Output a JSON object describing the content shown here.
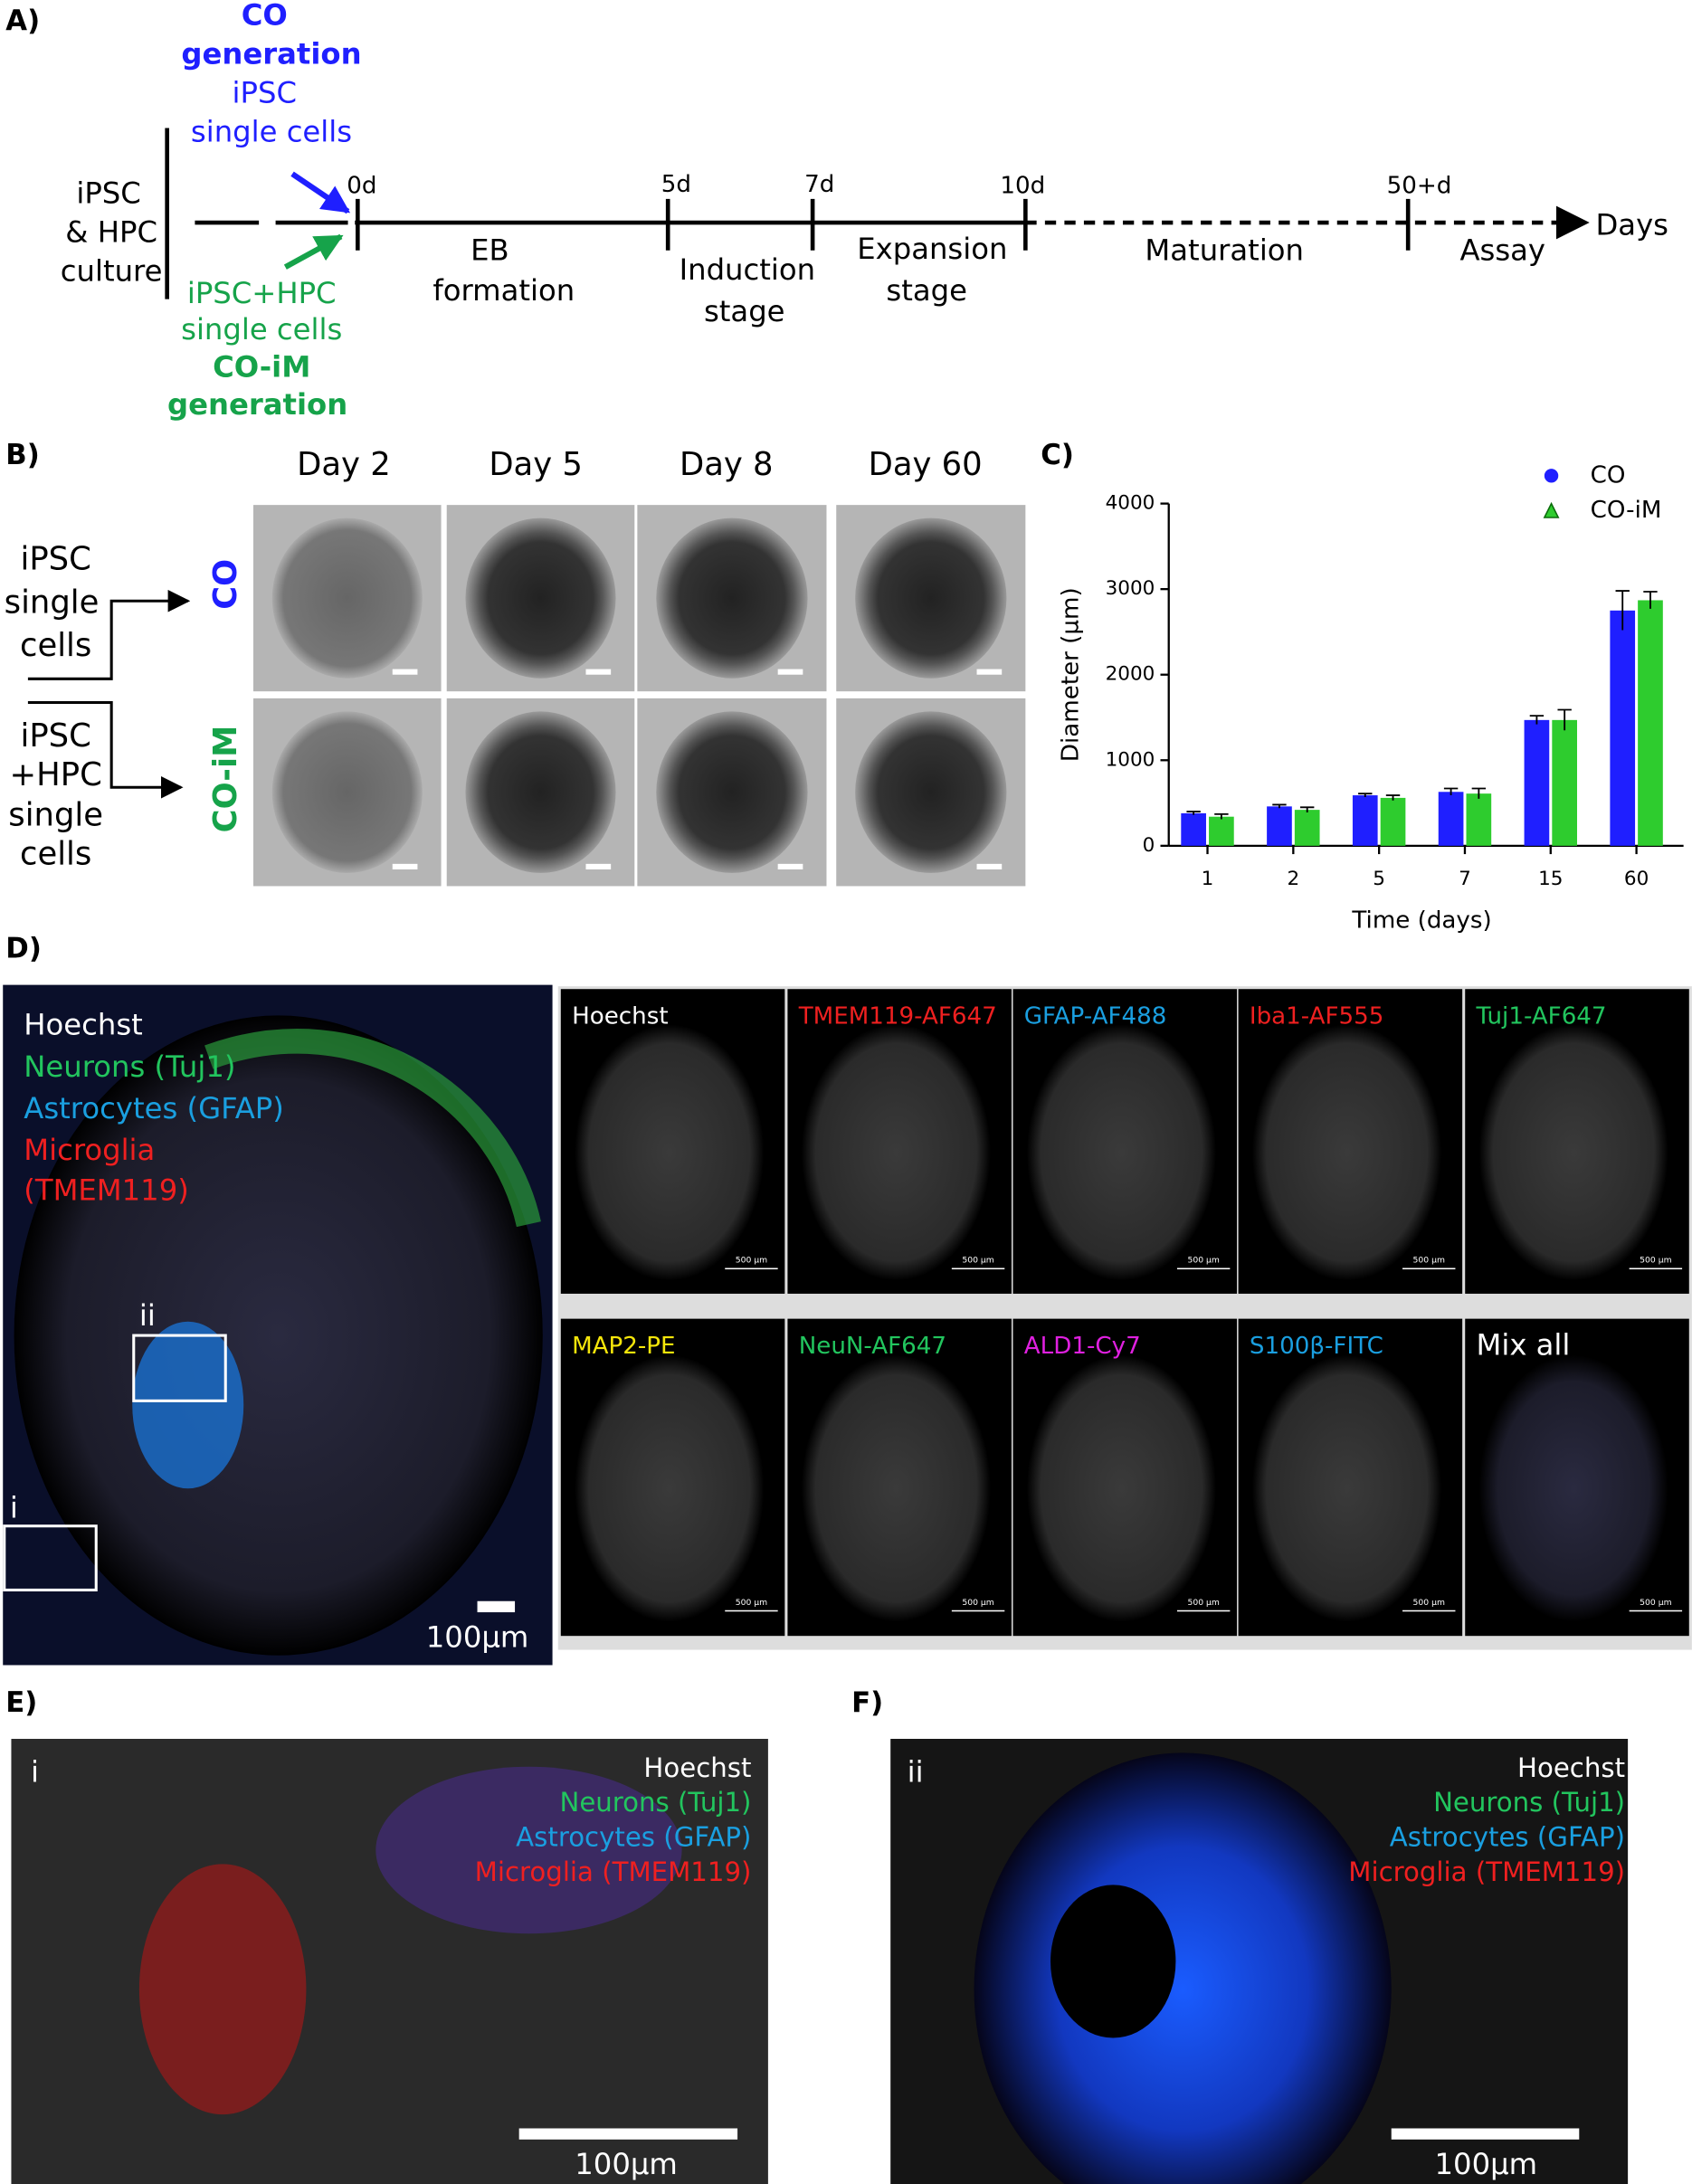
{
  "panel_labels": {
    "a": "A)",
    "b": "B)",
    "c": "C)",
    "d": "D)",
    "e": "E)",
    "f": "F)"
  },
  "timeline": {
    "co_title": [
      "CO",
      "generation"
    ],
    "co_cells": [
      "iPSC",
      "single cells"
    ],
    "culture": [
      "iPSC",
      "& HPC",
      "culture"
    ],
    "coim_cells": [
      "iPSC+HPC",
      "single cells"
    ],
    "coim_title": [
      "CO-iM",
      "generation"
    ],
    "ticks": [
      "0d",
      "5d",
      "7d",
      "10d",
      "50+d"
    ],
    "stages": [
      [
        "EB",
        "formation"
      ],
      [
        "Induction",
        "stage"
      ],
      [
        "Expansion",
        "stage"
      ],
      [
        "Maturation"
      ],
      [
        "Assay"
      ]
    ],
    "axis": "Days"
  },
  "panel_b": {
    "days": [
      "Day 2",
      "Day 5",
      "Day 8",
      "Day 60"
    ],
    "rows": [
      "CO",
      "CO-iM"
    ],
    "left_top": [
      "iPSC",
      "single",
      "cells"
    ],
    "left_bottom": [
      "iPSC",
      "+HPC",
      "single",
      "cells"
    ]
  },
  "chart_data": {
    "type": "bar",
    "x_label": "Time (days)",
    "y_label": "Diameter (µm)",
    "categories": [
      "1",
      "2",
      "5",
      "7",
      "15",
      "60"
    ],
    "series": [
      {
        "name": "CO",
        "color": "#1f1fff",
        "values": [
          380,
          460,
          590,
          630,
          1470,
          2750
        ],
        "errors": [
          20,
          20,
          20,
          40,
          50,
          230
        ]
      },
      {
        "name": "CO-iM",
        "color": "#2ecc2e",
        "values": [
          340,
          420,
          560,
          610,
          1470,
          2870
        ],
        "errors": [
          30,
          30,
          30,
          60,
          120,
          100
        ]
      }
    ],
    "ylim": [
      0,
      4000
    ],
    "yticks": [
      0,
      1000,
      2000,
      3000,
      4000
    ],
    "legend": "top-right"
  },
  "panel_d": {
    "legend": [
      "Hoechst",
      "Neurons (Tuj1)",
      "Astrocytes (GFAP)",
      "Microglia",
      "(TMEM119)"
    ],
    "boxes": [
      "ii",
      "i"
    ],
    "scale": "100µm",
    "panel_scale": "500 µm",
    "grid": [
      [
        "Hoechst",
        "TMEM119-AF647",
        "GFAP-AF488",
        "Iba1-AF555",
        "Tuj1-AF647"
      ],
      [
        "MAP2-PE",
        "NeuN-AF647",
        "ALD1-Cy7",
        "S100β-FITC",
        "Mix all"
      ]
    ]
  },
  "panel_e": {
    "tag": "i",
    "legend": [
      "Hoechst",
      "Neurons (Tuj1)",
      "Astrocytes (GFAP)",
      "Microglia (TMEM119)"
    ],
    "scale": "100µm"
  },
  "panel_f": {
    "tag": "ii",
    "legend": [
      "Hoechst",
      "Neurons (Tuj1)",
      "Astrocytes (GFAP)",
      "Microglia (TMEM119)"
    ],
    "scale": "100µm"
  }
}
